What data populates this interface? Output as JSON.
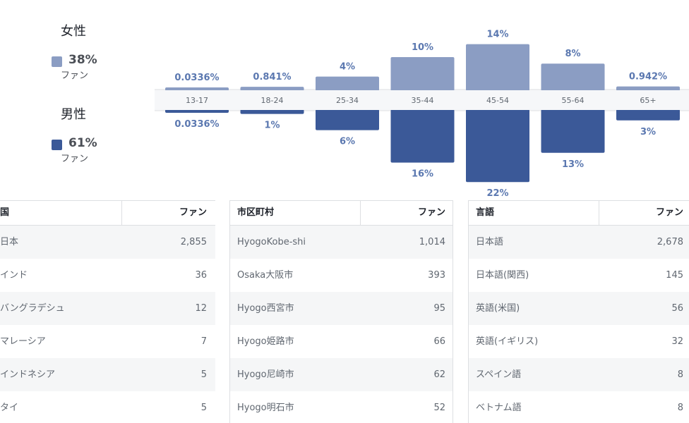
{
  "gender": {
    "female": {
      "label": "女性",
      "percent": "38%",
      "sub": "ファン",
      "color": "#8b9dc3"
    },
    "male": {
      "label": "男性",
      "percent": "61%",
      "sub": "ファン",
      "color": "#3b5998"
    }
  },
  "chart_data": {
    "type": "bar",
    "categories": [
      "13-17",
      "18-24",
      "25-34",
      "35-44",
      "45-54",
      "55-64",
      "65+"
    ],
    "series": [
      {
        "name": "女性",
        "color": "#8b9dc3",
        "values": [
          0.0336,
          0.841,
          4,
          10,
          14,
          8,
          0.942
        ],
        "labels": [
          "0.0336%",
          "0.841%",
          "4%",
          "10%",
          "14%",
          "8%",
          "0.942%"
        ]
      },
      {
        "name": "男性",
        "color": "#3b5998",
        "values": [
          0.0336,
          1,
          6,
          16,
          22,
          13,
          3
        ],
        "labels": [
          "0.0336%",
          "1%",
          "6%",
          "16%",
          "22%",
          "13%",
          "3%"
        ]
      }
    ],
    "yunit": "%"
  },
  "tables": [
    {
      "name_header": "国",
      "value_header": "ファン",
      "rows": [
        {
          "name": "日本",
          "value": "2,855"
        },
        {
          "name": "インド",
          "value": "36"
        },
        {
          "name": "バングラデシュ",
          "value": "12"
        },
        {
          "name": "マレーシア",
          "value": "7"
        },
        {
          "name": "インドネシア",
          "value": "5"
        },
        {
          "name": "タイ",
          "value": "5"
        }
      ]
    },
    {
      "name_header": "市区町村",
      "value_header": "ファン",
      "rows": [
        {
          "name": "HyogoKobe-shi",
          "value": "1,014"
        },
        {
          "name": "Osaka大阪市",
          "value": "393"
        },
        {
          "name": "Hyogo西宮市",
          "value": "95"
        },
        {
          "name": "Hyogo姫路市",
          "value": "66"
        },
        {
          "name": "Hyogo尼崎市",
          "value": "62"
        },
        {
          "name": "Hyogo明石市",
          "value": "52"
        }
      ]
    },
    {
      "name_header": "言語",
      "value_header": "ファン",
      "rows": [
        {
          "name": "日本語",
          "value": "2,678"
        },
        {
          "name": "日本語(関西)",
          "value": "145"
        },
        {
          "name": "英語(米国)",
          "value": "56"
        },
        {
          "name": "英語(イギリス)",
          "value": "32"
        },
        {
          "name": "スペイン語",
          "value": "8"
        },
        {
          "name": "ベトナム語",
          "value": "8"
        }
      ]
    }
  ]
}
